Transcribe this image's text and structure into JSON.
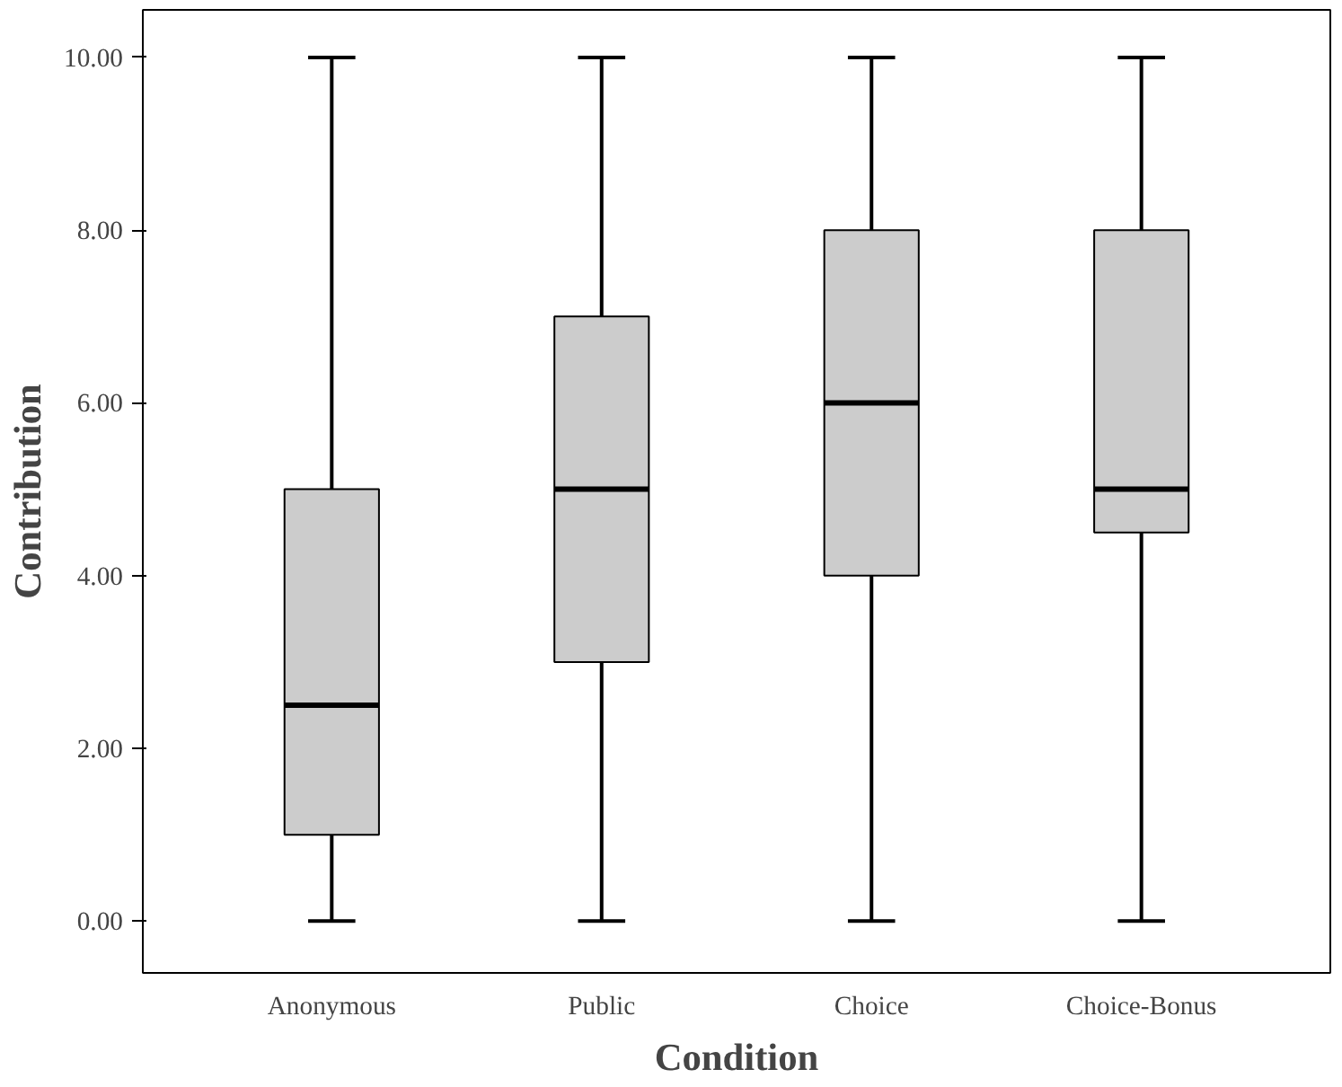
{
  "chart_data": {
    "type": "box",
    "xlabel": "Condition",
    "ylabel": "Contribution",
    "categories": [
      "Anonymous",
      "Public",
      "Choice",
      "Choice-Bonus"
    ],
    "boxes": [
      {
        "low": 0,
        "q1": 1,
        "median": 2.5,
        "q3": 5,
        "high": 10
      },
      {
        "low": 0,
        "q1": 3,
        "median": 5,
        "q3": 7,
        "high": 10
      },
      {
        "low": 0,
        "q1": 4,
        "median": 6,
        "q3": 8,
        "high": 10
      },
      {
        "low": 0,
        "q1": 4.5,
        "median": 5,
        "q3": 8,
        "high": 10
      }
    ],
    "color": "#cccccc",
    "ylim": [
      -0.6,
      10.55
    ],
    "yticks": [
      {
        "value": 0,
        "label": "0.00"
      },
      {
        "value": 2,
        "label": "2.00"
      },
      {
        "value": 4,
        "label": "4.00"
      },
      {
        "value": 6,
        "label": "6.00"
      },
      {
        "value": 8,
        "label": "8.00"
      },
      {
        "value": 10,
        "label": "10.00"
      }
    ],
    "grid": false
  }
}
